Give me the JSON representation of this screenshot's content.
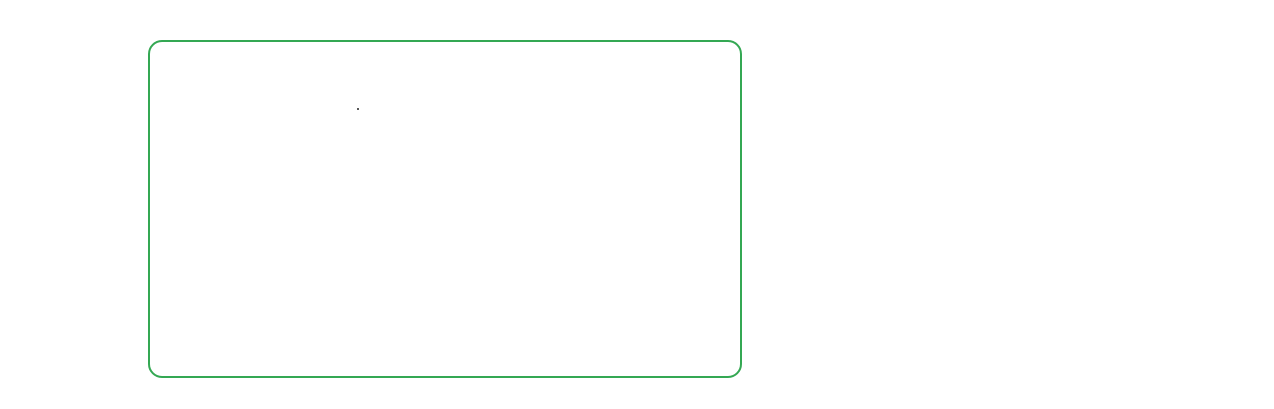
{
  "panel": {
    "border_color": "#34a853",
    "background_color": "#ffffff",
    "content": ""
  },
  "page": {
    "background_color": "#ffffff"
  }
}
